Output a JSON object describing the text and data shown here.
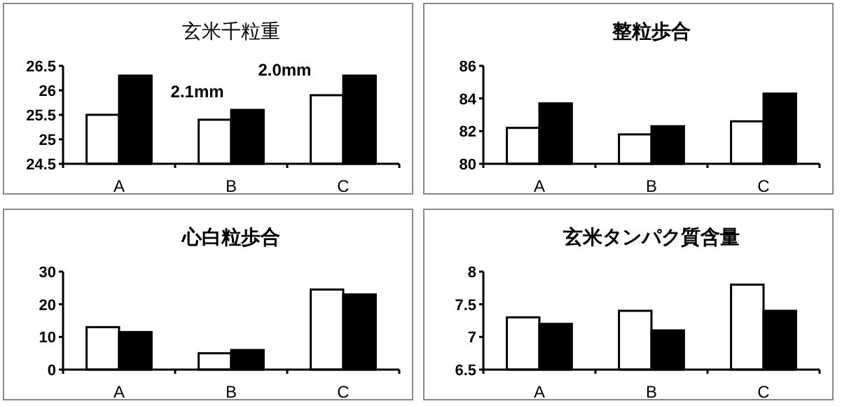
{
  "chart_data": [
    {
      "type": "bar",
      "title": "玄米千粒重",
      "categories": [
        "A",
        "B",
        "C"
      ],
      "annotations": [
        "2.1mm",
        "2.0mm"
      ],
      "ylim": [
        24.5,
        26.5
      ],
      "yticks": [
        24.5,
        25,
        25.5,
        26,
        26.5
      ],
      "series": [
        {
          "color": "#ffffff",
          "values": [
            25.5,
            25.4,
            25.9
          ]
        },
        {
          "color": "#000000",
          "values": [
            26.3,
            25.6,
            26.3
          ]
        }
      ]
    },
    {
      "type": "bar",
      "title": "整粒歩合",
      "categories": [
        "A",
        "B",
        "C"
      ],
      "ylim": [
        80,
        86
      ],
      "yticks": [
        80,
        82,
        84,
        86
      ],
      "series": [
        {
          "color": "#ffffff",
          "values": [
            82.2,
            81.8,
            82.6
          ]
        },
        {
          "color": "#000000",
          "values": [
            83.7,
            82.3,
            84.3
          ]
        }
      ]
    },
    {
      "type": "bar",
      "title": "心白粒歩合",
      "categories": [
        "A",
        "B",
        "C"
      ],
      "ylim": [
        0,
        30
      ],
      "yticks": [
        0,
        10,
        20,
        30
      ],
      "series": [
        {
          "color": "#ffffff",
          "values": [
            13,
            5,
            24.5
          ]
        },
        {
          "color": "#000000",
          "values": [
            11.5,
            6,
            23
          ]
        }
      ]
    },
    {
      "type": "bar",
      "title": "玄米タンパク質含量",
      "categories": [
        "A",
        "B",
        "C"
      ],
      "ylim": [
        6.5,
        8
      ],
      "yticks": [
        6.5,
        7,
        7.5,
        8
      ],
      "series": [
        {
          "color": "#ffffff",
          "values": [
            7.3,
            7.4,
            7.8
          ]
        },
        {
          "color": "#000000",
          "values": [
            7.2,
            7.1,
            7.4
          ]
        }
      ]
    }
  ]
}
